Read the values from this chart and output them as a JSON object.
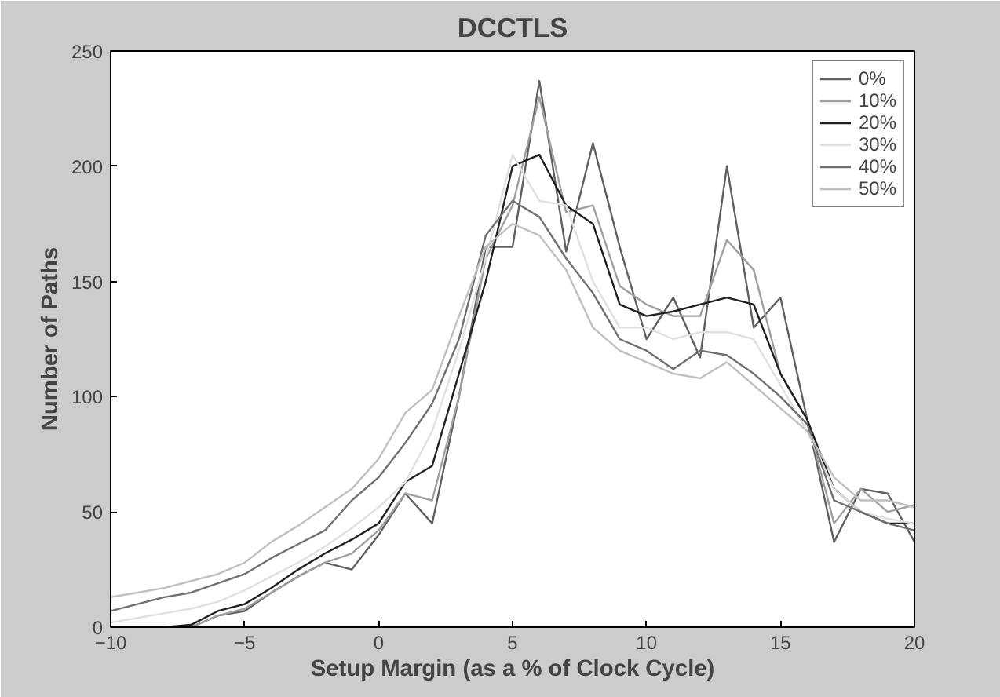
{
  "chart_data": {
    "type": "line",
    "title": "DCCTLS",
    "xlabel": "Setup Margin (as a % of Clock Cycle)",
    "ylabel": "Number of Paths",
    "x": [
      -10,
      -9,
      -8,
      -7,
      -6,
      -5,
      -4,
      -3,
      -2,
      -1,
      0,
      1,
      2,
      3,
      4,
      5,
      6,
      7,
      8,
      9,
      10,
      11,
      12,
      13,
      14,
      15,
      16,
      17,
      18,
      19,
      20
    ],
    "series": [
      {
        "name": "0%",
        "color": "#606060",
        "values": [
          0,
          0,
          0,
          0,
          5,
          7,
          15,
          22,
          28,
          25,
          40,
          58,
          45,
          100,
          165,
          165,
          237,
          163,
          210,
          165,
          125,
          143,
          117,
          200,
          130,
          143,
          90,
          37,
          60,
          58,
          37
        ]
      },
      {
        "name": "10%",
        "color": "#a0a0a0",
        "values": [
          0,
          0,
          0,
          0,
          5,
          8,
          15,
          22,
          28,
          32,
          42,
          58,
          55,
          100,
          160,
          183,
          230,
          180,
          183,
          148,
          140,
          135,
          135,
          168,
          155,
          110,
          90,
          45,
          60,
          50,
          53
        ]
      },
      {
        "name": "20%",
        "color": "#202020",
        "values": [
          0,
          0,
          0,
          1,
          7,
          10,
          17,
          25,
          32,
          38,
          45,
          63,
          70,
          110,
          150,
          200,
          205,
          183,
          175,
          140,
          135,
          137,
          140,
          143,
          140,
          110,
          90,
          60,
          50,
          45,
          45
        ]
      },
      {
        "name": "30%",
        "color": "#e0e0e0",
        "values": [
          2,
          4,
          6,
          8,
          11,
          16,
          22,
          28,
          35,
          43,
          52,
          63,
          85,
          120,
          160,
          205,
          185,
          183,
          150,
          130,
          130,
          125,
          128,
          128,
          125,
          105,
          85,
          60,
          50,
          47,
          45
        ]
      },
      {
        "name": "40%",
        "color": "#707070",
        "values": [
          7,
          10,
          13,
          15,
          19,
          23,
          30,
          36,
          42,
          55,
          65,
          80,
          97,
          125,
          170,
          185,
          178,
          160,
          145,
          125,
          120,
          112,
          120,
          118,
          110,
          100,
          88,
          55,
          50,
          45,
          42
        ]
      },
      {
        "name": "50%",
        "color": "#c0c0c0",
        "values": [
          13,
          15,
          17,
          20,
          23,
          28,
          37,
          44,
          52,
          60,
          73,
          93,
          103,
          135,
          165,
          175,
          170,
          155,
          130,
          120,
          115,
          110,
          108,
          115,
          105,
          95,
          85,
          65,
          55,
          55,
          52
        ]
      }
    ],
    "xlim": [
      -10,
      20
    ],
    "ylim": [
      0,
      250
    ],
    "xticks": [
      -10,
      -5,
      0,
      5,
      10,
      15,
      20
    ],
    "yticks": [
      0,
      50,
      100,
      150,
      200,
      250
    ],
    "grid": false,
    "legend": "top right",
    "marker": "none",
    "line_style": "solid"
  }
}
